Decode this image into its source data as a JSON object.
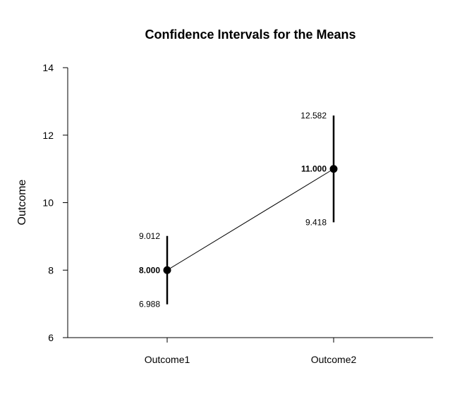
{
  "chart_data": {
    "type": "line",
    "title": "Confidence Intervals for the Means",
    "xlabel": "",
    "ylabel": "Outcome",
    "ylim": [
      6,
      14
    ],
    "yticks": [
      "6",
      "8",
      "10",
      "12",
      "14"
    ],
    "categories": [
      "Outcome1",
      "Outcome2"
    ],
    "series": [
      {
        "means": [
          8.0,
          11.0
        ],
        "lower": [
          6.988,
          9.418
        ],
        "upper": [
          9.012,
          12.582
        ],
        "mean_labels": [
          "8.000",
          "11.000"
        ],
        "lower_labels": [
          "6.988",
          "9.418"
        ],
        "upper_labels": [
          "9.012",
          "12.582"
        ]
      }
    ],
    "grid": false,
    "legend": "none",
    "colors": {
      "line": "#000000",
      "point": "#000000"
    }
  }
}
